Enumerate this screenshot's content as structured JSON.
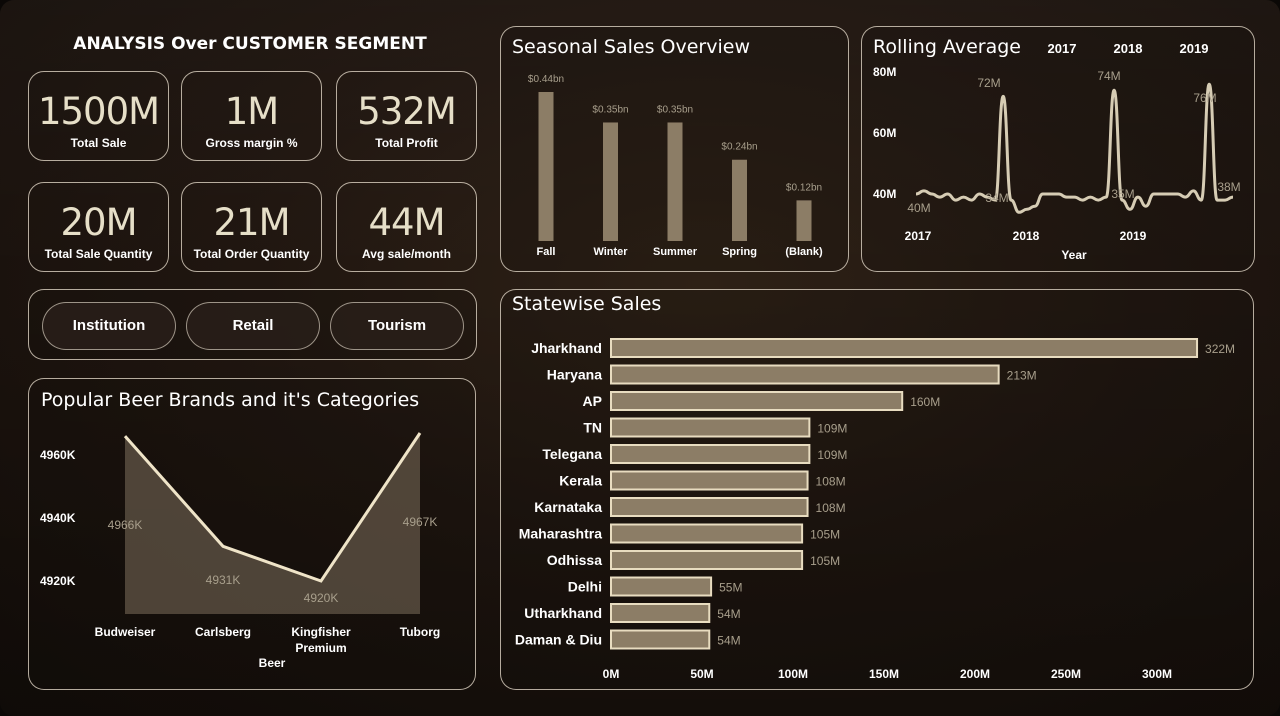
{
  "header": {
    "title": "ANALYSIS Over CUSTOMER SEGMENT"
  },
  "kpis": [
    {
      "value": "1500M",
      "label": "Total Sale"
    },
    {
      "value": "1M",
      "label": "Gross margin %"
    },
    {
      "value": "532M",
      "label": "Total Profit"
    },
    {
      "value": "20M",
      "label": "Total Sale Quantity"
    },
    {
      "value": "21M",
      "label": "Total Order Quantity"
    },
    {
      "value": "44M",
      "label": "Avg sale/month"
    }
  ],
  "segments": [
    "Institution",
    "Retail",
    "Tourism"
  ],
  "colors": {
    "bar_fill": "#8c7d66",
    "bar_stroke": "#e8dcc0",
    "line": "#d6ccb4",
    "area": "#7d6f5c"
  },
  "chart_data": [
    {
      "id": "seasonal",
      "type": "bar",
      "title": "Seasonal Sales Overview",
      "categories": [
        "Fall",
        "Winter",
        "Summer",
        "Spring",
        "(Blank)"
      ],
      "values": [
        0.44,
        0.35,
        0.35,
        0.24,
        0.12
      ],
      "value_labels": [
        "$0.44bn",
        "$0.35bn",
        "$0.35bn",
        "$0.24bn",
        "$0.12bn"
      ],
      "ylim": [
        0,
        0.44
      ]
    },
    {
      "id": "rolling",
      "type": "line",
      "title": "Rolling Average",
      "legend": [
        "2017",
        "2018",
        "2019"
      ],
      "xlabel": "Year",
      "x_ticks": [
        "2017",
        "2018",
        "2019"
      ],
      "y_ticks": [
        "80M",
        "60M",
        "40M"
      ],
      "ylim": [
        30,
        80
      ],
      "series": [
        {
          "values": [
            40,
            41,
            40,
            39,
            40,
            38,
            39,
            38,
            40,
            39,
            38,
            72,
            38,
            34,
            35,
            36,
            40,
            40,
            40,
            39,
            39,
            38,
            39,
            38,
            39,
            74,
            38,
            35,
            39,
            36,
            40,
            40,
            40,
            40,
            39,
            41,
            38,
            76,
            38,
            38,
            39
          ]
        }
      ],
      "annotations": [
        "72M",
        "74M",
        "76M",
        "40M",
        "34M",
        "35M",
        "38M"
      ]
    },
    {
      "id": "beer",
      "type": "area",
      "title": "Popular Beer Brands and it's Categories",
      "categories": [
        "Budweiser",
        "Carlsberg",
        "Kingfisher Premium",
        "Tuborg"
      ],
      "values": [
        4966,
        4931,
        4920,
        4967
      ],
      "value_labels": [
        "4966K",
        "4931K",
        "4920K",
        "4967K"
      ],
      "y_ticks": [
        "4960K",
        "4940K",
        "4920K"
      ],
      "xlabel": "Beer",
      "ylim": [
        4910,
        4968
      ]
    },
    {
      "id": "statewise",
      "type": "bar",
      "orientation": "horizontal",
      "title": "Statewise Sales",
      "categories": [
        "Jharkhand",
        "Haryana",
        "AP",
        "TN",
        "Telegana",
        "Kerala",
        "Karnataka",
        "Maharashtra",
        "Odhissa",
        "Delhi",
        "Utharkhand",
        "Daman & Diu"
      ],
      "values": [
        322,
        213,
        160,
        109,
        109,
        108,
        108,
        105,
        105,
        55,
        54,
        54
      ],
      "value_labels": [
        "322M",
        "213M",
        "160M",
        "109M",
        "109M",
        "108M",
        "108M",
        "105M",
        "105M",
        "55M",
        "54M",
        "54M"
      ],
      "x_ticks": [
        "0M",
        "50M",
        "100M",
        "150M",
        "200M",
        "250M",
        "300M"
      ],
      "xlim": [
        0,
        300
      ]
    }
  ]
}
